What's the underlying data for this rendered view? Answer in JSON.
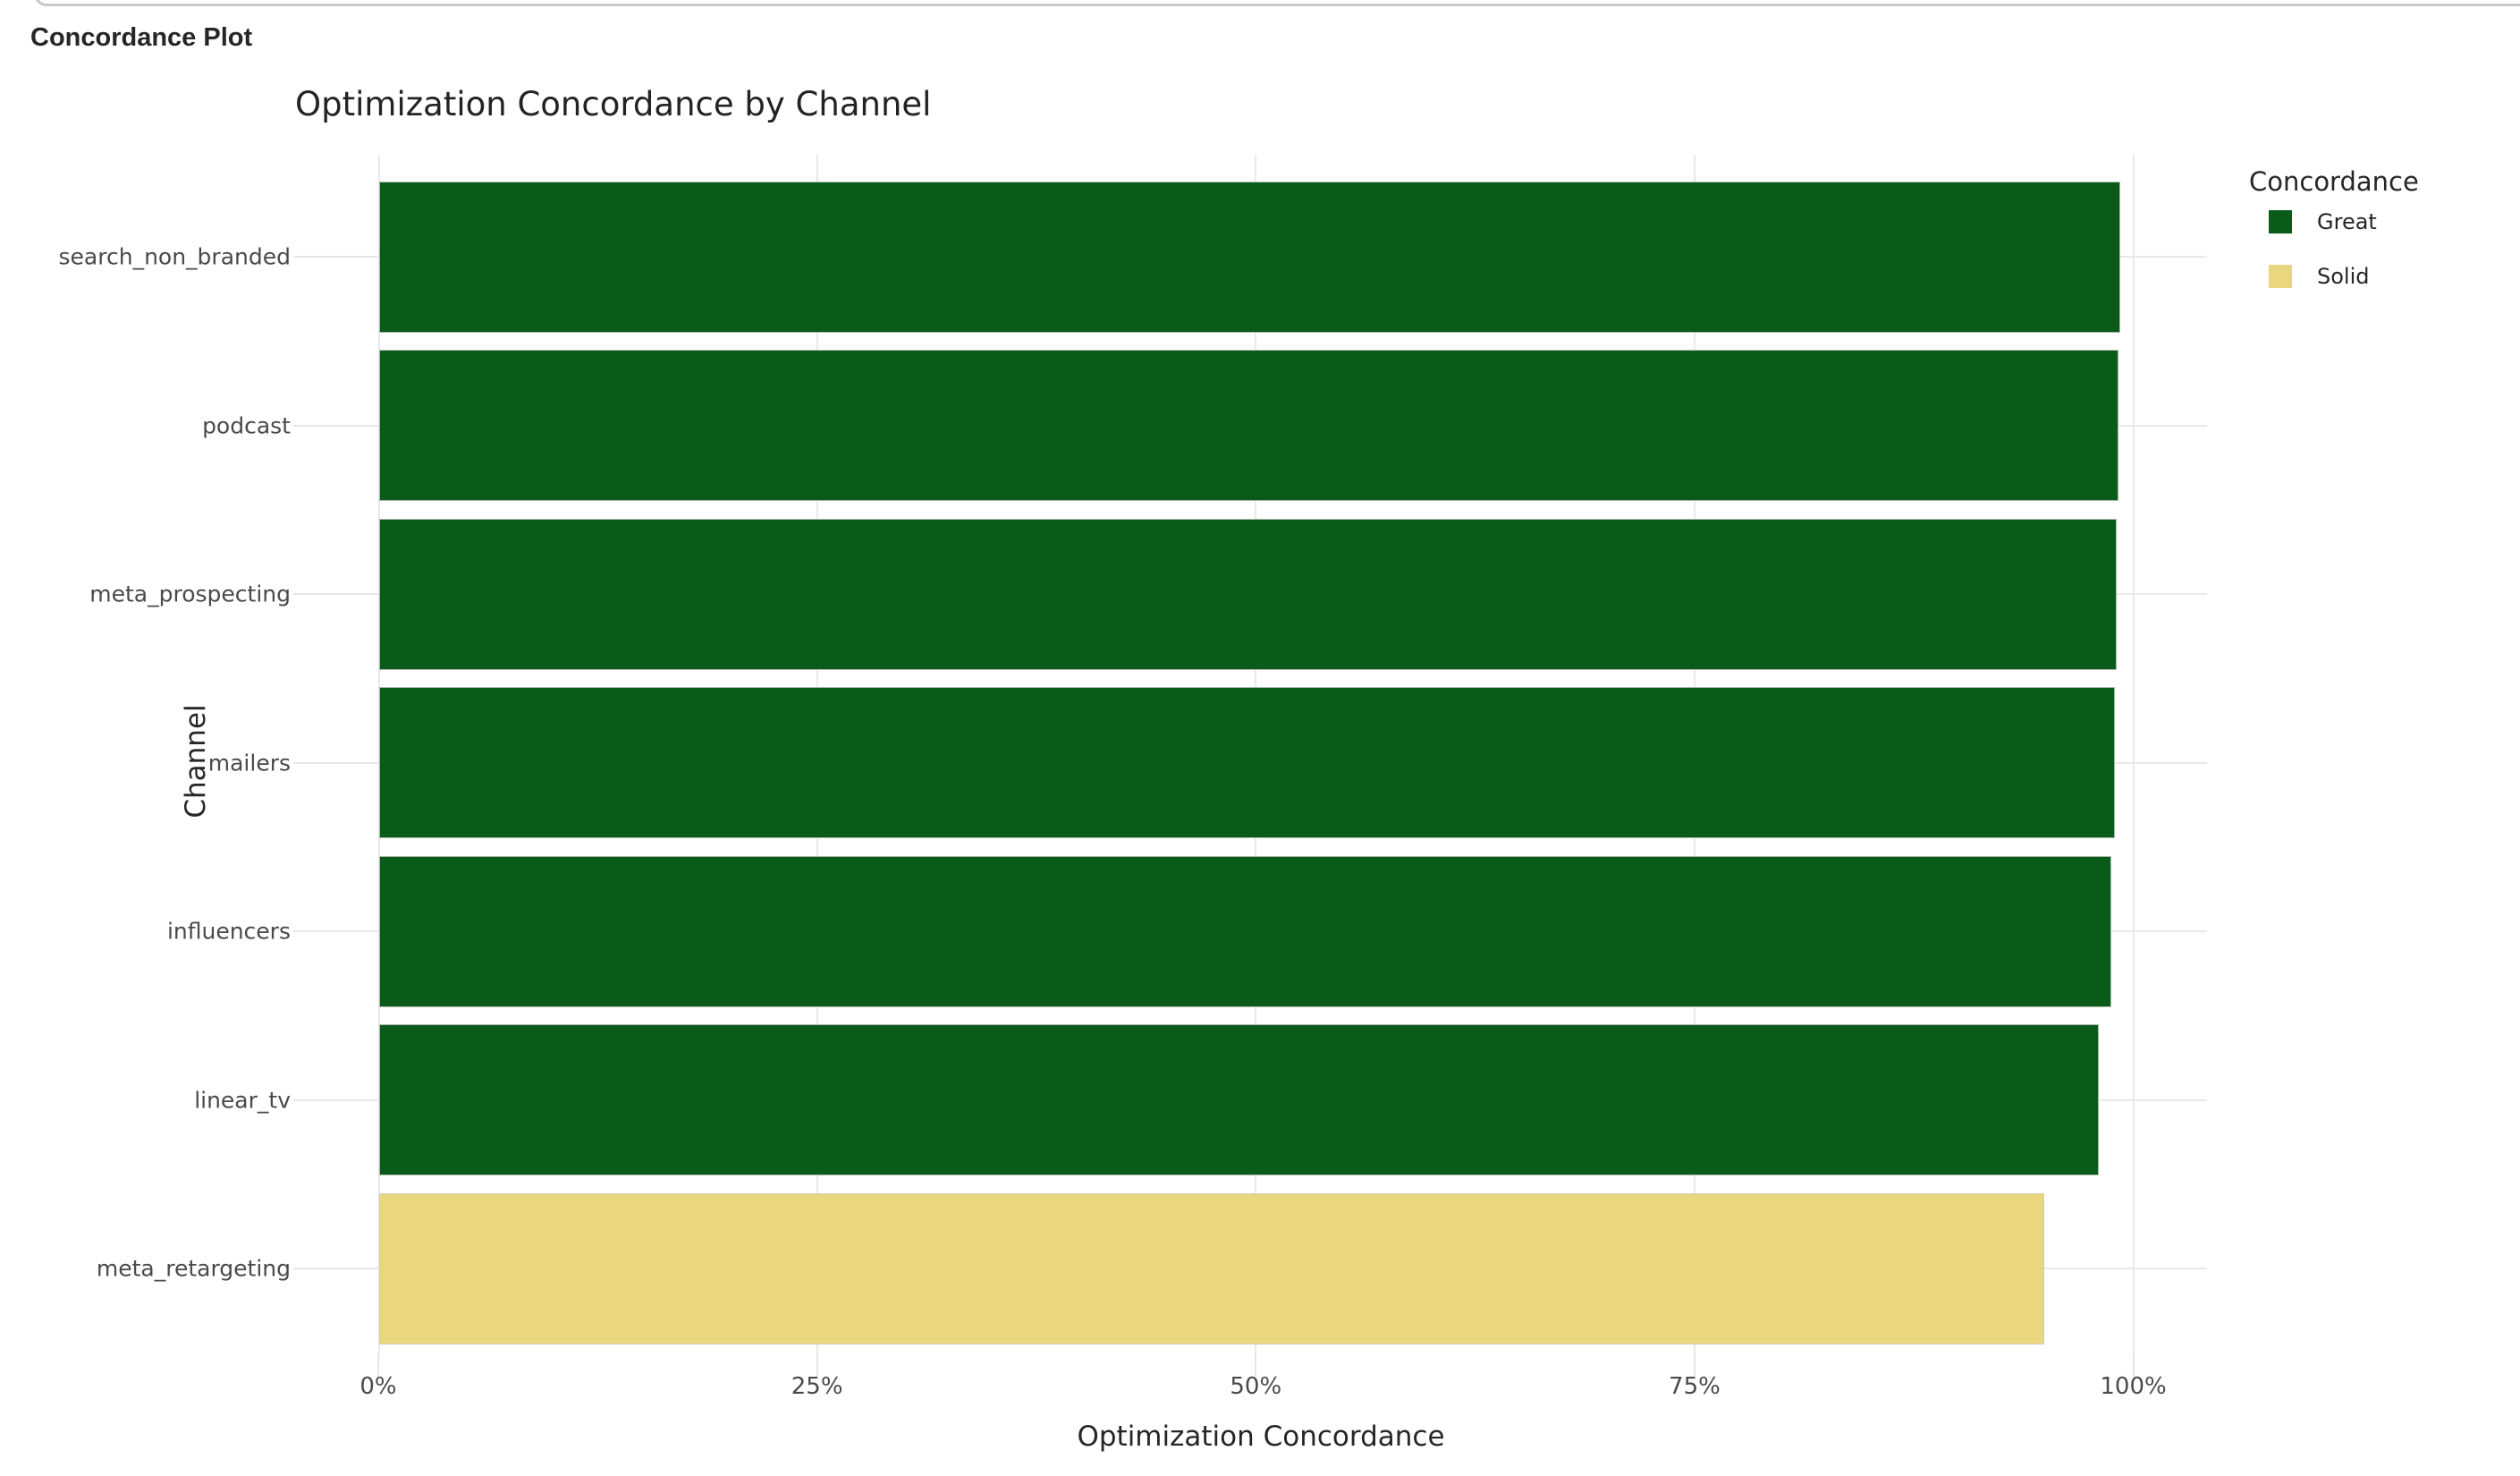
{
  "page": {
    "header": "Concordance Plot"
  },
  "chart_data": {
    "type": "bar",
    "orientation": "horizontal",
    "title": "Optimization Concordance by Channel",
    "xlabel": "Optimization Concordance",
    "ylabel": "Channel",
    "categories": [
      "search_non_branded",
      "podcast",
      "meta_prospecting",
      "mailers",
      "influencers",
      "linear_tv",
      "meta_retargeting"
    ],
    "values": [
      99.2,
      99.1,
      99.0,
      98.9,
      98.7,
      98.0,
      94.9
    ],
    "value_unit": "%",
    "bar_concordance": [
      "Great",
      "Great",
      "Great",
      "Great",
      "Great",
      "Great",
      "Solid"
    ],
    "x_ticks": [
      {
        "value": 0,
        "label": "0%"
      },
      {
        "value": 25,
        "label": "25%"
      },
      {
        "value": 50,
        "label": "50%"
      },
      {
        "value": 75,
        "label": "75%"
      },
      {
        "value": 100,
        "label": "100%"
      }
    ],
    "xlim": [
      0,
      104.2
    ],
    "grid": true,
    "legend": {
      "title": "Concordance",
      "position": "right",
      "items": [
        {
          "label": "Great",
          "color": "#0a5a1a"
        },
        {
          "label": "Solid",
          "color": "#e9d67d"
        }
      ]
    },
    "colors": {
      "grid": "#e9e9e9",
      "tick_text": "#4a4a4a",
      "title_text": "#232323"
    }
  }
}
